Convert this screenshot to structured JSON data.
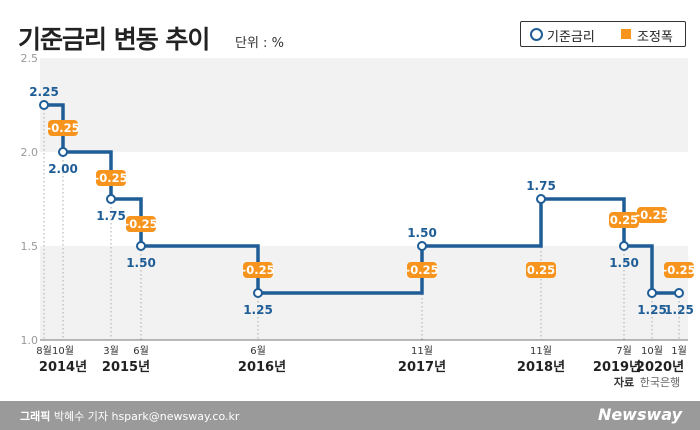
{
  "header": {
    "title": "기준금리 변동 추이",
    "unit": "단위 : %"
  },
  "legend": {
    "rate_label": "기준금리",
    "change_label": "조정폭"
  },
  "colors": {
    "rate_line": "#1f5d96",
    "change_badge": "#f7941d",
    "band": "#f2f2f2",
    "year_text": "#222222",
    "month_text": "#333333",
    "source_text": "#666666"
  },
  "chart_data": {
    "type": "line",
    "step": true,
    "title": "기준금리 변동 추이",
    "ylim": [
      1.0,
      2.5
    ],
    "yticks": [
      "1.0",
      "1.5",
      "2.0",
      "2.5"
    ],
    "grid": false,
    "legend_position": "top-right",
    "series": [
      {
        "name": "기준금리",
        "points": [
          {
            "month": "8월",
            "value": 2.25,
            "label": "2.25"
          },
          {
            "month": "10월",
            "value": 2.0,
            "label": "2.00"
          },
          {
            "month": "3월",
            "value": 1.75,
            "label": "1.75"
          },
          {
            "month": "6월",
            "value": 1.5,
            "label": "1.50"
          },
          {
            "month": "6월",
            "value": 1.25,
            "label": "1.25"
          },
          {
            "month": "11월",
            "value": 1.5,
            "label": "1.50"
          },
          {
            "month": "11월",
            "value": 1.75,
            "label": "1.75"
          },
          {
            "month": "7월",
            "value": 1.5,
            "label": "1.50"
          },
          {
            "month": "10월",
            "value": 1.25,
            "label": "1.25"
          },
          {
            "month": "1월",
            "value": 1.25,
            "label": "1.25"
          }
        ]
      }
    ],
    "changes": [
      "-0.25",
      "-0.25",
      "-0.25",
      "-0.25",
      "-0.25",
      "0.25",
      "0.25",
      "-0.25",
      "-0.25"
    ],
    "years": [
      "2014년",
      "2015년",
      "2016년",
      "2017년",
      "2018년",
      "2019년",
      "2020년"
    ],
    "source_line1": "자료",
    "source_line2": "한국은행"
  },
  "footer": {
    "label": "그래픽",
    "credit": "박혜수 기자 hspark@newsway.co.kr",
    "brand": "Newsway"
  }
}
